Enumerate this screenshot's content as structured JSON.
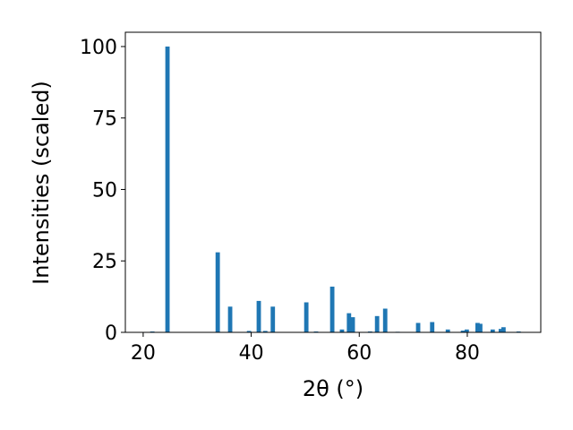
{
  "chart_data": {
    "type": "bar",
    "x": [
      21.7,
      24.5,
      33.8,
      36.1,
      39.6,
      41.4,
      42.6,
      44.0,
      50.2,
      52.0,
      55.0,
      56.8,
      58.1,
      58.8,
      62.0,
      63.3,
      64.8,
      67.1,
      70.9,
      73.5,
      76.4,
      79.2,
      79.9,
      81.9,
      82.4,
      84.7,
      86.2,
      86.7,
      89.5
    ],
    "values": [
      0.3,
      100,
      28,
      9,
      0.5,
      11,
      0.5,
      9,
      10.5,
      0.3,
      16,
      1,
      6.7,
      5.3,
      0.3,
      5.7,
      8.3,
      0.2,
      3.3,
      3.6,
      1,
      0.6,
      1,
      3.3,
      3,
      1,
      1.2,
      1.8,
      0.3
    ],
    "color": "#1f77b4",
    "xlabel": "2θ (°)",
    "ylabel": "Intensities (scaled)",
    "xlim": [
      16.7,
      93.6
    ],
    "xticks": [
      20,
      40,
      60,
      80
    ],
    "ylim": [
      0,
      105
    ],
    "yticks": [
      0,
      25,
      50,
      75,
      100
    ]
  }
}
